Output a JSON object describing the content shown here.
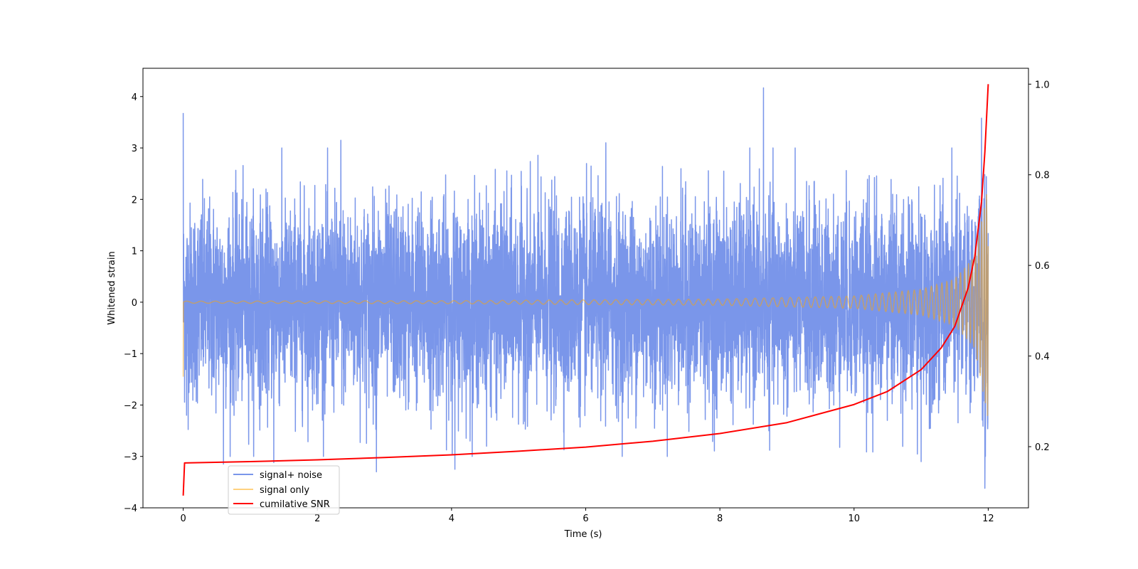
{
  "chart_data": {
    "type": "line",
    "title": "",
    "xlabel": "Time (s)",
    "ylabel": "Whitened strain",
    "y2label": "",
    "xlim": [
      -0.6,
      12.6
    ],
    "ylim": [
      -4.0,
      4.55
    ],
    "y2lim": [
      0.065,
      1.035
    ],
    "xticks": [
      0,
      2,
      4,
      6,
      8,
      10,
      12
    ],
    "yticks": [
      -4,
      -3,
      -2,
      -1,
      0,
      1,
      2,
      3,
      4
    ],
    "y2ticks": [
      0.2,
      0.4,
      0.6,
      0.8,
      1.0
    ],
    "grid": false,
    "legend_position": "lower-left",
    "series": [
      {
        "name": "signal+ noise",
        "color": "#4169e1",
        "axis": "left",
        "x_range": [
          0,
          12
        ],
        "noise_std": 0.95,
        "notable_points": [
          {
            "x": 0.0,
            "y": 3.68
          },
          {
            "x": 0.05,
            "y": -2.2
          },
          {
            "x": 0.6,
            "y": -3.15
          },
          {
            "x": 1.35,
            "y": -3.12
          },
          {
            "x": 2.35,
            "y": 3.15
          },
          {
            "x": 2.88,
            "y": -3.3
          },
          {
            "x": 4.05,
            "y": -3.25
          },
          {
            "x": 6.3,
            "y": 3.1
          },
          {
            "x": 8.65,
            "y": 4.17
          },
          {
            "x": 11.0,
            "y": -3.1
          },
          {
            "x": 11.9,
            "y": 3.58
          },
          {
            "x": 11.95,
            "y": -3.62
          }
        ]
      },
      {
        "name": "signal only",
        "color": "#ffa500",
        "axis": "left",
        "x_range": [
          0,
          12
        ],
        "amplitude_envelope": [
          {
            "x": 0,
            "y": 0.02
          },
          {
            "x": 4,
            "y": 0.03
          },
          {
            "x": 8,
            "y": 0.06
          },
          {
            "x": 10,
            "y": 0.12
          },
          {
            "x": 11,
            "y": 0.25
          },
          {
            "x": 11.5,
            "y": 0.45
          },
          {
            "x": 11.8,
            "y": 0.9
          },
          {
            "x": 12,
            "y": 2.28
          }
        ],
        "start_value": -1.45
      },
      {
        "name": "cumilative SNR",
        "color": "#ff0000",
        "axis": "right",
        "points": [
          {
            "x": 0.0,
            "y": 0.092
          },
          {
            "x": 0.02,
            "y": 0.164
          },
          {
            "x": 1,
            "y": 0.167
          },
          {
            "x": 2,
            "y": 0.171
          },
          {
            "x": 3,
            "y": 0.176
          },
          {
            "x": 4,
            "y": 0.182
          },
          {
            "x": 5,
            "y": 0.19
          },
          {
            "x": 6,
            "y": 0.199
          },
          {
            "x": 7,
            "y": 0.212
          },
          {
            "x": 8,
            "y": 0.229
          },
          {
            "x": 9,
            "y": 0.253
          },
          {
            "x": 10,
            "y": 0.293
          },
          {
            "x": 10.5,
            "y": 0.322
          },
          {
            "x": 11,
            "y": 0.37
          },
          {
            "x": 11.3,
            "y": 0.418
          },
          {
            "x": 11.5,
            "y": 0.465
          },
          {
            "x": 11.7,
            "y": 0.55
          },
          {
            "x": 11.8,
            "y": 0.62
          },
          {
            "x": 11.9,
            "y": 0.74
          },
          {
            "x": 11.95,
            "y": 0.85
          },
          {
            "x": 12.0,
            "y": 1.0
          }
        ]
      }
    ],
    "legend": [
      {
        "label": "signal+ noise",
        "color": "#4169e1"
      },
      {
        "label": "signal only",
        "color": "#ffa500"
      },
      {
        "label": "cumilative SNR",
        "color": "#ff0000"
      }
    ]
  }
}
